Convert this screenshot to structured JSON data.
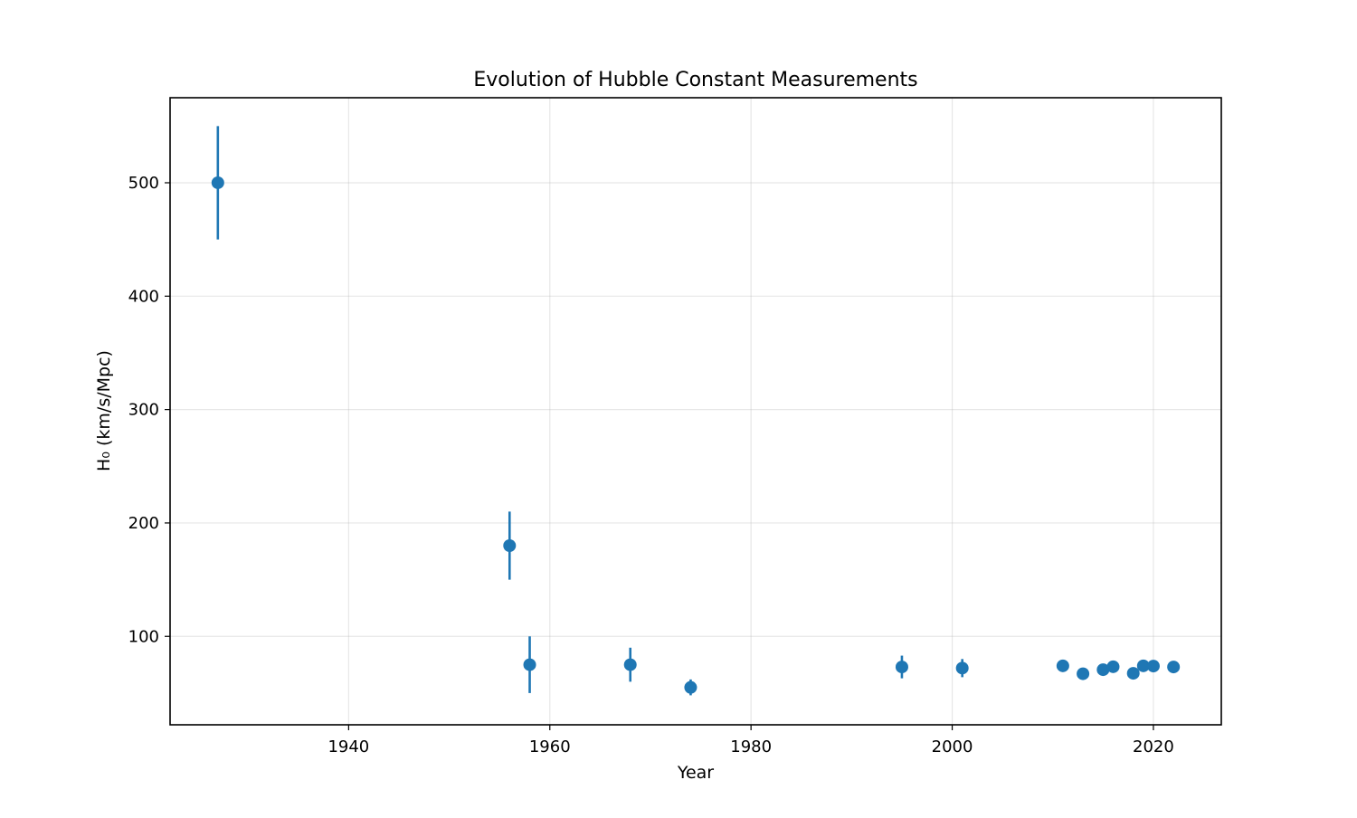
{
  "chart_data": {
    "type": "scatter",
    "title": "Evolution of Hubble Constant Measurements",
    "xlabel": "Year",
    "ylabel": "H₀ (km/s/Mpc)",
    "xlim": [
      1922.25,
      2026.75
    ],
    "ylim": [
      22,
      575
    ],
    "xticks": [
      1940,
      1960,
      1980,
      2000,
      2020
    ],
    "yticks": [
      100,
      200,
      300,
      400,
      500
    ],
    "grid": true,
    "color": "#1f77b4",
    "series": [
      {
        "points": [
          {
            "x": 1927,
            "y": 500,
            "err": 50
          },
          {
            "x": 1956,
            "y": 180,
            "err": 30
          },
          {
            "x": 1958,
            "y": 75,
            "err": 25
          },
          {
            "x": 1968,
            "y": 75,
            "err": 15
          },
          {
            "x": 1974,
            "y": 55,
            "err": 7
          },
          {
            "x": 1995,
            "y": 73,
            "err": 10
          },
          {
            "x": 2001,
            "y": 72,
            "err": 8
          },
          {
            "x": 2011,
            "y": 74,
            "err": 2.4
          },
          {
            "x": 2013,
            "y": 67,
            "err": 1.2
          },
          {
            "x": 2015,
            "y": 70.6,
            "err": 2.6
          },
          {
            "x": 2016,
            "y": 73.2,
            "err": 1.7
          },
          {
            "x": 2018,
            "y": 67.4,
            "err": 0.5
          },
          {
            "x": 2019,
            "y": 74,
            "err": 1.4
          },
          {
            "x": 2020,
            "y": 73.8,
            "err": 1.1
          },
          {
            "x": 2022,
            "y": 73,
            "err": 1.0
          }
        ]
      }
    ]
  }
}
